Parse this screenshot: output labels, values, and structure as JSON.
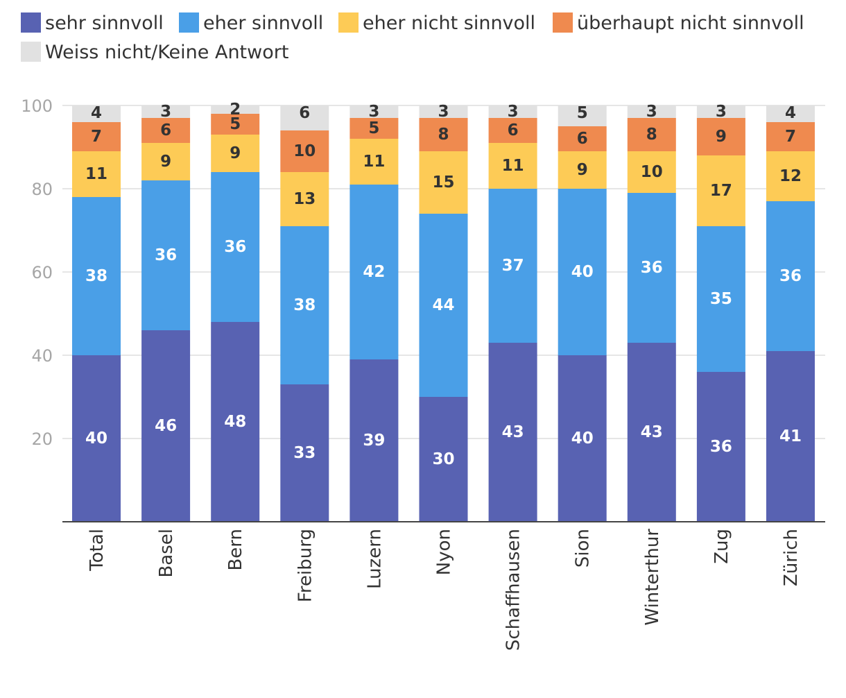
{
  "chart_data": {
    "type": "bar",
    "stacked": true,
    "categories": [
      "Total",
      "Basel",
      "Bern",
      "Freiburg",
      "Luzern",
      "Nyon",
      "Schaffhausen",
      "Sion",
      "Winterthur",
      "Zug",
      "Zürich"
    ],
    "series": [
      {
        "name": "sehr sinnvoll",
        "color": "#5862b2",
        "values": [
          40,
          46,
          48,
          33,
          39,
          30,
          43,
          40,
          43,
          36,
          41
        ]
      },
      {
        "name": "eher sinnvoll",
        "color": "#4a9fe7",
        "values": [
          38,
          36,
          36,
          38,
          42,
          44,
          37,
          40,
          36,
          35,
          36
        ]
      },
      {
        "name": "eher nicht sinnvoll",
        "color": "#fdcb56",
        "values": [
          11,
          9,
          9,
          13,
          11,
          15,
          11,
          9,
          10,
          17,
          12
        ]
      },
      {
        "name": "überhaupt nicht sinnvoll",
        "color": "#ef8a4f",
        "values": [
          7,
          6,
          5,
          10,
          5,
          8,
          6,
          6,
          8,
          9,
          7
        ]
      },
      {
        "name": "Weiss nicht/Keine Antwort",
        "color": "#e1e1e1",
        "values": [
          4,
          3,
          2,
          6,
          3,
          3,
          3,
          5,
          3,
          3,
          4
        ]
      }
    ],
    "ylim": [
      0,
      100
    ],
    "yticks": [
      20,
      40,
      60,
      80,
      100
    ],
    "grid": true,
    "legend": "top",
    "xlabel": "",
    "ylabel": "",
    "title": ""
  }
}
